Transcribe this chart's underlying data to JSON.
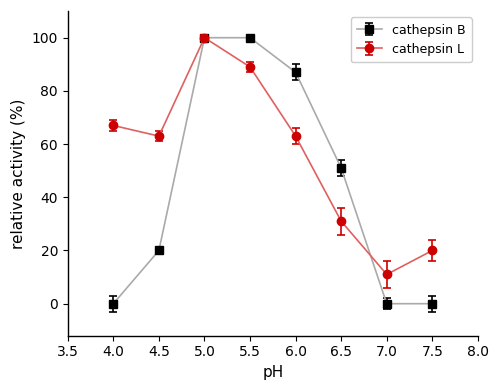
{
  "cathepsin_B": {
    "x": [
      4.0,
      4.5,
      5.0,
      5.5,
      6.0,
      6.5,
      7.0,
      7.5
    ],
    "y": [
      0,
      20,
      100,
      100,
      87,
      51,
      0,
      0
    ],
    "yerr": [
      3,
      1,
      1,
      1,
      3,
      3,
      2,
      3
    ],
    "line_color": "#aaaaaa",
    "marker_color": "#000000",
    "marker": "s",
    "label": "cathepsin B"
  },
  "cathepsin_L": {
    "x": [
      4.0,
      4.5,
      5.0,
      5.5,
      6.0,
      6.5,
      7.0,
      7.5
    ],
    "y": [
      67,
      63,
      100,
      89,
      63,
      31,
      11,
      20
    ],
    "yerr": [
      2,
      2,
      1,
      2,
      3,
      5,
      5,
      4
    ],
    "line_color": "#e06060",
    "marker_color": "#cc0000",
    "marker": "o",
    "label": "cathepsin L"
  },
  "xlabel": "pH",
  "ylabel": "relative activity (%)",
  "xlim": [
    3.5,
    8.0
  ],
  "ylim": [
    -12,
    110
  ],
  "xticks": [
    3.5,
    4.0,
    4.5,
    5.0,
    5.5,
    6.0,
    6.5,
    7.0,
    7.5,
    8.0
  ],
  "yticks": [
    0,
    20,
    40,
    60,
    80,
    100
  ],
  "figsize": [
    5.0,
    3.91
  ],
  "dpi": 100,
  "background_color": "#ffffff"
}
